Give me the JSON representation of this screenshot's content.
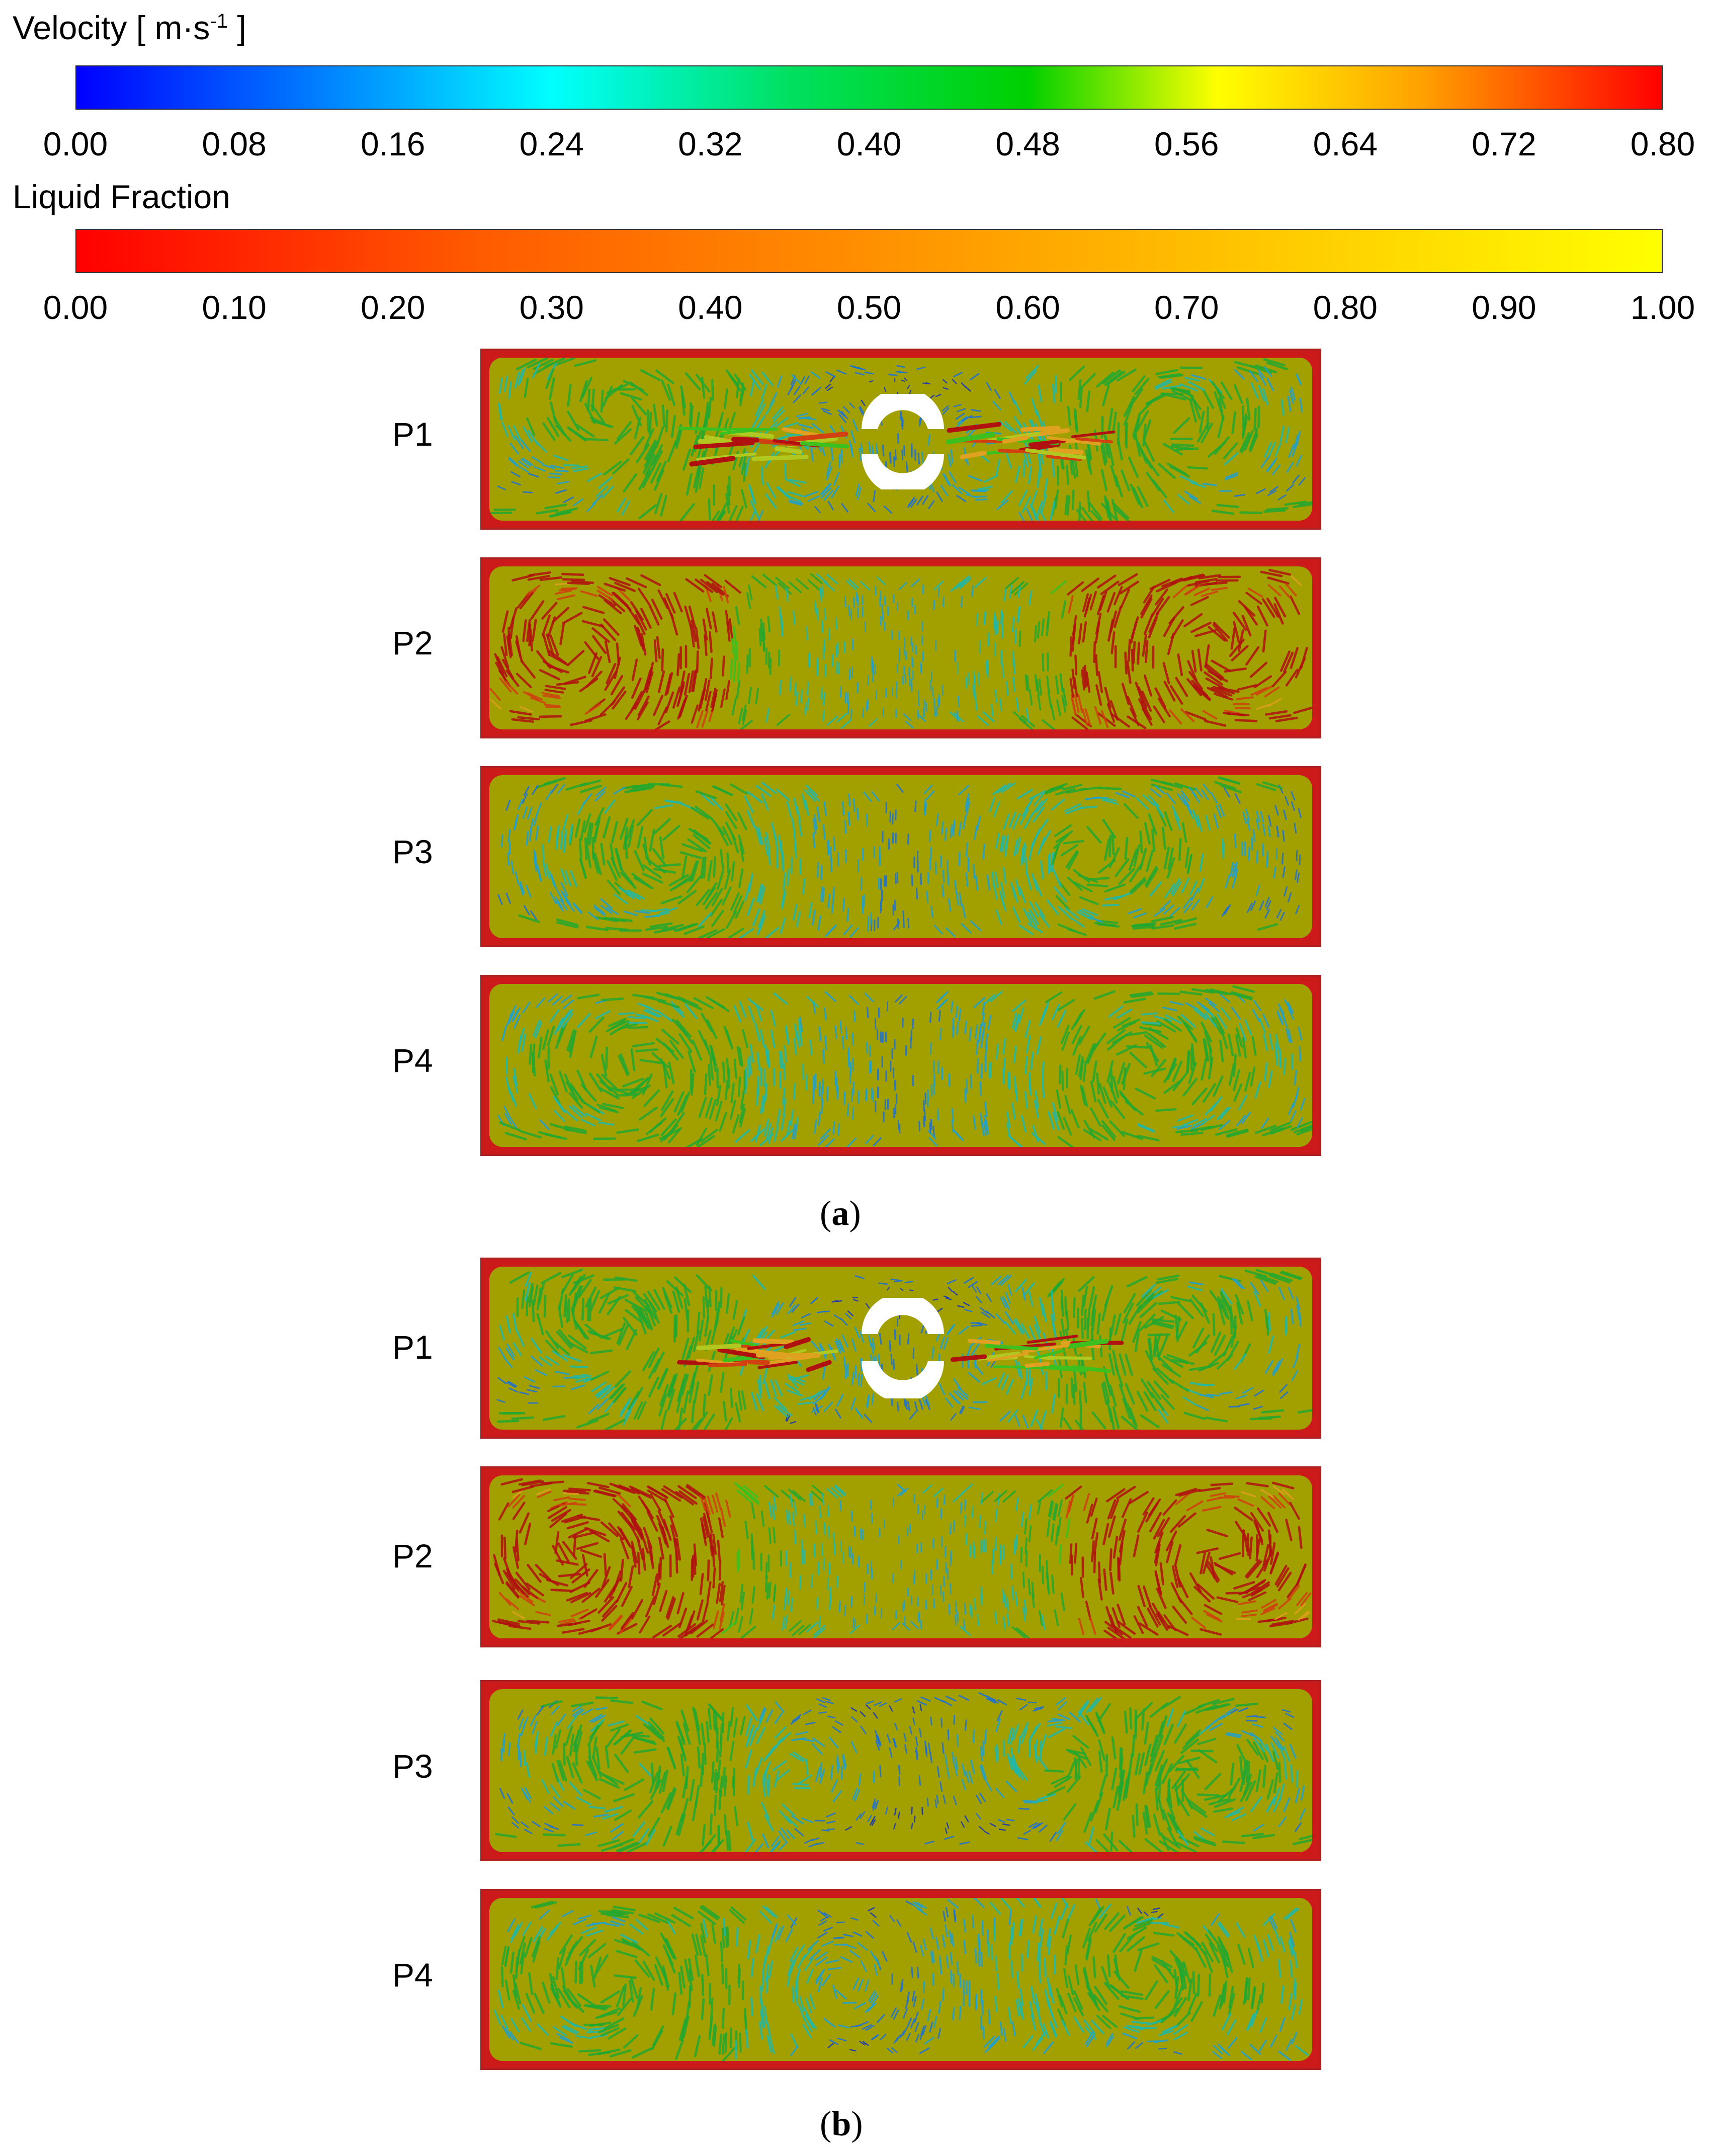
{
  "velocity_legend": {
    "title": "Velocity [ m·s",
    "title_sup": "-1",
    "title_end": " ]",
    "ticks": [
      "0.00",
      "0.08",
      "0.16",
      "0.24",
      "0.32",
      "0.40",
      "0.48",
      "0.56",
      "0.64",
      "0.72",
      "0.80"
    ],
    "colors": [
      "#0000ff",
      "#00a6ff",
      "#00ffff",
      "#00d000",
      "#ffff00",
      "#ffa000",
      "#ff0000"
    ]
  },
  "liquid_fraction_legend": {
    "title": "Liquid Fraction",
    "ticks": [
      "0.00",
      "0.10",
      "0.20",
      "0.30",
      "0.40",
      "0.50",
      "0.60",
      "0.70",
      "0.80",
      "0.90",
      "1.00"
    ],
    "colors": [
      "#ff0000",
      "#ff9000",
      "#ffff00"
    ]
  },
  "groups": [
    {
      "caption_open": "(",
      "caption_letter": "a",
      "caption_close": ")",
      "panels": [
        {
          "label": "P1",
          "has_tube": true
        },
        {
          "label": "P2",
          "has_tube": false
        },
        {
          "label": "P3",
          "has_tube": false
        },
        {
          "label": "P4",
          "has_tube": false
        }
      ]
    },
    {
      "caption_open": "(",
      "caption_letter": "b",
      "caption_close": ")",
      "panels": [
        {
          "label": "P1",
          "has_tube": true
        },
        {
          "label": "P2",
          "has_tube": false
        },
        {
          "label": "P3",
          "has_tube": false
        },
        {
          "label": "P4",
          "has_tube": false
        }
      ]
    }
  ],
  "colors": {
    "solid_region": "#a29f00",
    "wall_region": "#cc1a1a"
  }
}
